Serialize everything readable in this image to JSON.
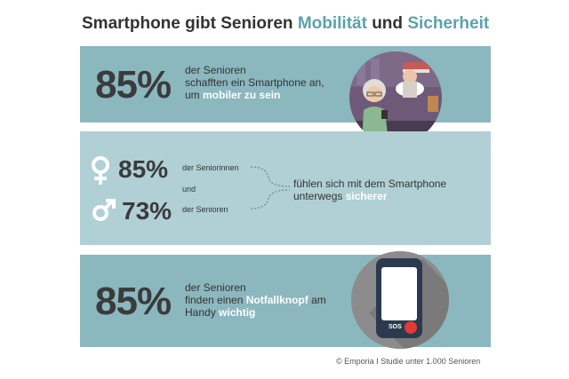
{
  "title": {
    "part1": "Smartphone gibt Senioren ",
    "highlight1": "Mobilität",
    "part2": " und ",
    "highlight2": "Sicherheit"
  },
  "block1": {
    "percent": "85%",
    "line1": "der Senioren",
    "line2": "schafften ein Smartphone an,",
    "line3_prefix": "um ",
    "line3_highlight": "mobiler zu sein"
  },
  "block2": {
    "female_percent": "85%",
    "female_label": "der Seniorinnen",
    "connector": "und",
    "male_percent": "73%",
    "male_label": "der Senioren",
    "result_line1": "fühlen sich mit dem Smartphone",
    "result_line2_prefix": "unterwegs ",
    "result_line2_highlight": "sicherer"
  },
  "block3": {
    "percent": "85%",
    "line1": "der Senioren",
    "line2_prefix": "finden einen ",
    "line2_highlight": "Notfallknopf",
    "line2_suffix": " am",
    "line3_prefix": "Handy ",
    "line3_highlight": "wichtig",
    "phone_button": "SOS"
  },
  "footer": {
    "text": "© Emporia  I  Studie unter 1.000 Senioren"
  },
  "colors": {
    "accent": "#5aa3ac",
    "band_dark": "#8bb7be",
    "band_light": "#b0d0d5",
    "sos_red": "#e53935"
  }
}
